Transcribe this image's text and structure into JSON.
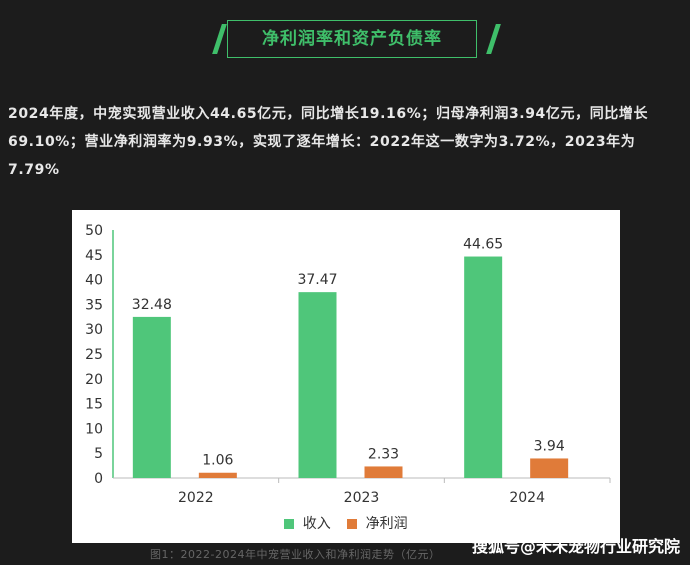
{
  "banner": {
    "title": "净利润率和资产负债率"
  },
  "intro": {
    "text": "2024年度，中宠实现营业收入44.65亿元，同比增长19.16%；归母净利润3.94亿元，同比增长69.10%；营业净利润率为9.93%，实现了逐年增长：2022年这一数字为3.72%，2023年为7.79%"
  },
  "colors": {
    "revenue": "#4fc67a",
    "profit": "#e07b39",
    "accent": "#3fbf6a",
    "axis": "#4fc67a"
  },
  "chart_data": {
    "type": "bar",
    "categories": [
      "2022",
      "2023",
      "2024"
    ],
    "series": [
      {
        "name": "收入",
        "values": [
          32.48,
          37.47,
          44.65
        ]
      },
      {
        "name": "净利润",
        "values": [
          1.06,
          2.33,
          3.94
        ]
      }
    ],
    "value_labels": [
      [
        "32.48",
        "37.47",
        "44.65"
      ],
      [
        "1.06",
        "2.33",
        "3.94"
      ]
    ],
    "ylim": [
      0,
      50
    ],
    "yticks": [
      "0",
      "5",
      "10",
      "15",
      "20",
      "25",
      "30",
      "35",
      "40",
      "45",
      "50"
    ],
    "legend_position": "bottom",
    "grid": false
  },
  "caption": {
    "text": "图1：2022-2024年中宠营业收入和净利润走势（亿元）"
  },
  "source": {
    "text": "搜狐号@禾禾宠物行业研究院"
  }
}
